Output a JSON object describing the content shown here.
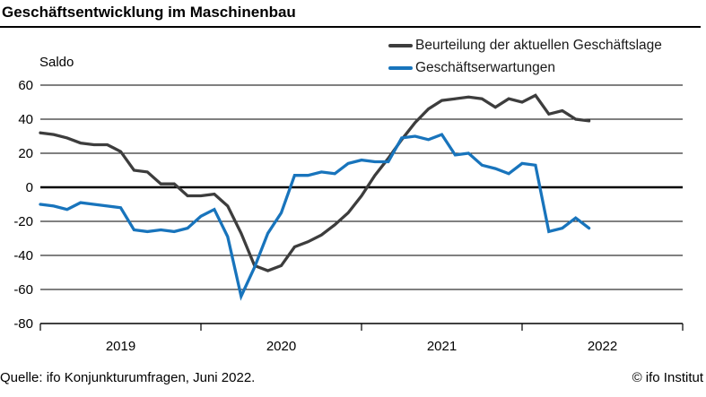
{
  "header": {
    "title": "Geschäftsentwicklung im Maschinenbau"
  },
  "chart_data": {
    "type": "line",
    "title": "Geschäftsentwicklung im Maschinenbau",
    "ylabel": "Saldo",
    "ylim": [
      -80,
      60
    ],
    "ytick_step": 20,
    "yticks": [
      60,
      40,
      20,
      0,
      -20,
      -40,
      -60,
      -80
    ],
    "grid": "horizontal",
    "zero_line_emphasized": true,
    "legend_position": "top-right",
    "x_frequency": "monthly",
    "x_start": "2019-01",
    "x_end": "2022-06",
    "x_year_ticks": [
      "2019",
      "2020",
      "2021",
      "2022"
    ],
    "series": [
      {
        "name": "Beurteilung der aktuellen Geschäftslage",
        "color": "#3d3d3d",
        "values": [
          32,
          31,
          29,
          26,
          25,
          25,
          21,
          10,
          9,
          2,
          2,
          -5,
          -5,
          -4,
          -11,
          -27,
          -46,
          -49,
          -46,
          -35,
          -32,
          -28,
          -22,
          -15,
          -5,
          7,
          17,
          28,
          38,
          46,
          51,
          52,
          53,
          52,
          47,
          52,
          50,
          54,
          43,
          45,
          40,
          39
        ]
      },
      {
        "name": "Geschäftserwartungen",
        "color": "#1874bc",
        "values": [
          -10,
          -11,
          -13,
          -9,
          -10,
          -11,
          -12,
          -25,
          -26,
          -25,
          -26,
          -24,
          -17,
          -13,
          -29,
          -64,
          -47,
          -27,
          -15,
          7,
          7,
          9,
          8,
          14,
          16,
          15,
          15,
          29,
          30,
          28,
          31,
          19,
          20,
          13,
          11,
          8,
          14,
          13,
          -26,
          -24,
          -18,
          -24
        ]
      }
    ]
  },
  "footer": {
    "source": "Quelle: ifo Konjunkturumfragen, Juni 2022.",
    "copyright": "© ifo Institut"
  }
}
